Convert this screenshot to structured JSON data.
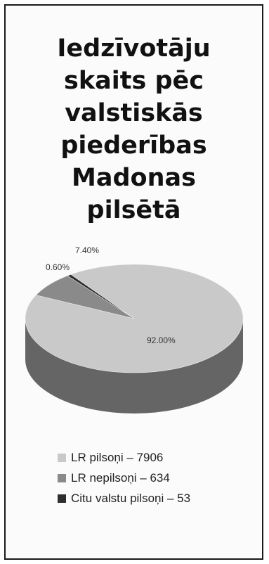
{
  "title_lines": [
    "Iedzīvotāju",
    "skaits pēc",
    "valstiskās",
    "piederības",
    "Madonas",
    "pilsētā"
  ],
  "chart_data": {
    "type": "pie",
    "title": "Iedzīvotāju skaits pēc valstiskās piederības Madonas pilsētā",
    "slices": [
      {
        "label": "LR pilsoņi",
        "value": 7906,
        "percent_label": "92.00%",
        "color": "#c9c9c9",
        "legend": "LR pilsoņi – 7906"
      },
      {
        "label": "LR nepilsoņi",
        "value": 634,
        "percent_label": "7.40%",
        "color": "#8a8a8a",
        "legend": "LR nepilsoņi – 634"
      },
      {
        "label": "Citu valstu pilsoņi",
        "value": 53,
        "percent_label": "0.60%",
        "color": "#2e2e2e",
        "legend": "Citu valstu pilsoņi – 53"
      }
    ],
    "three_d": true,
    "legend_position": "bottom"
  }
}
